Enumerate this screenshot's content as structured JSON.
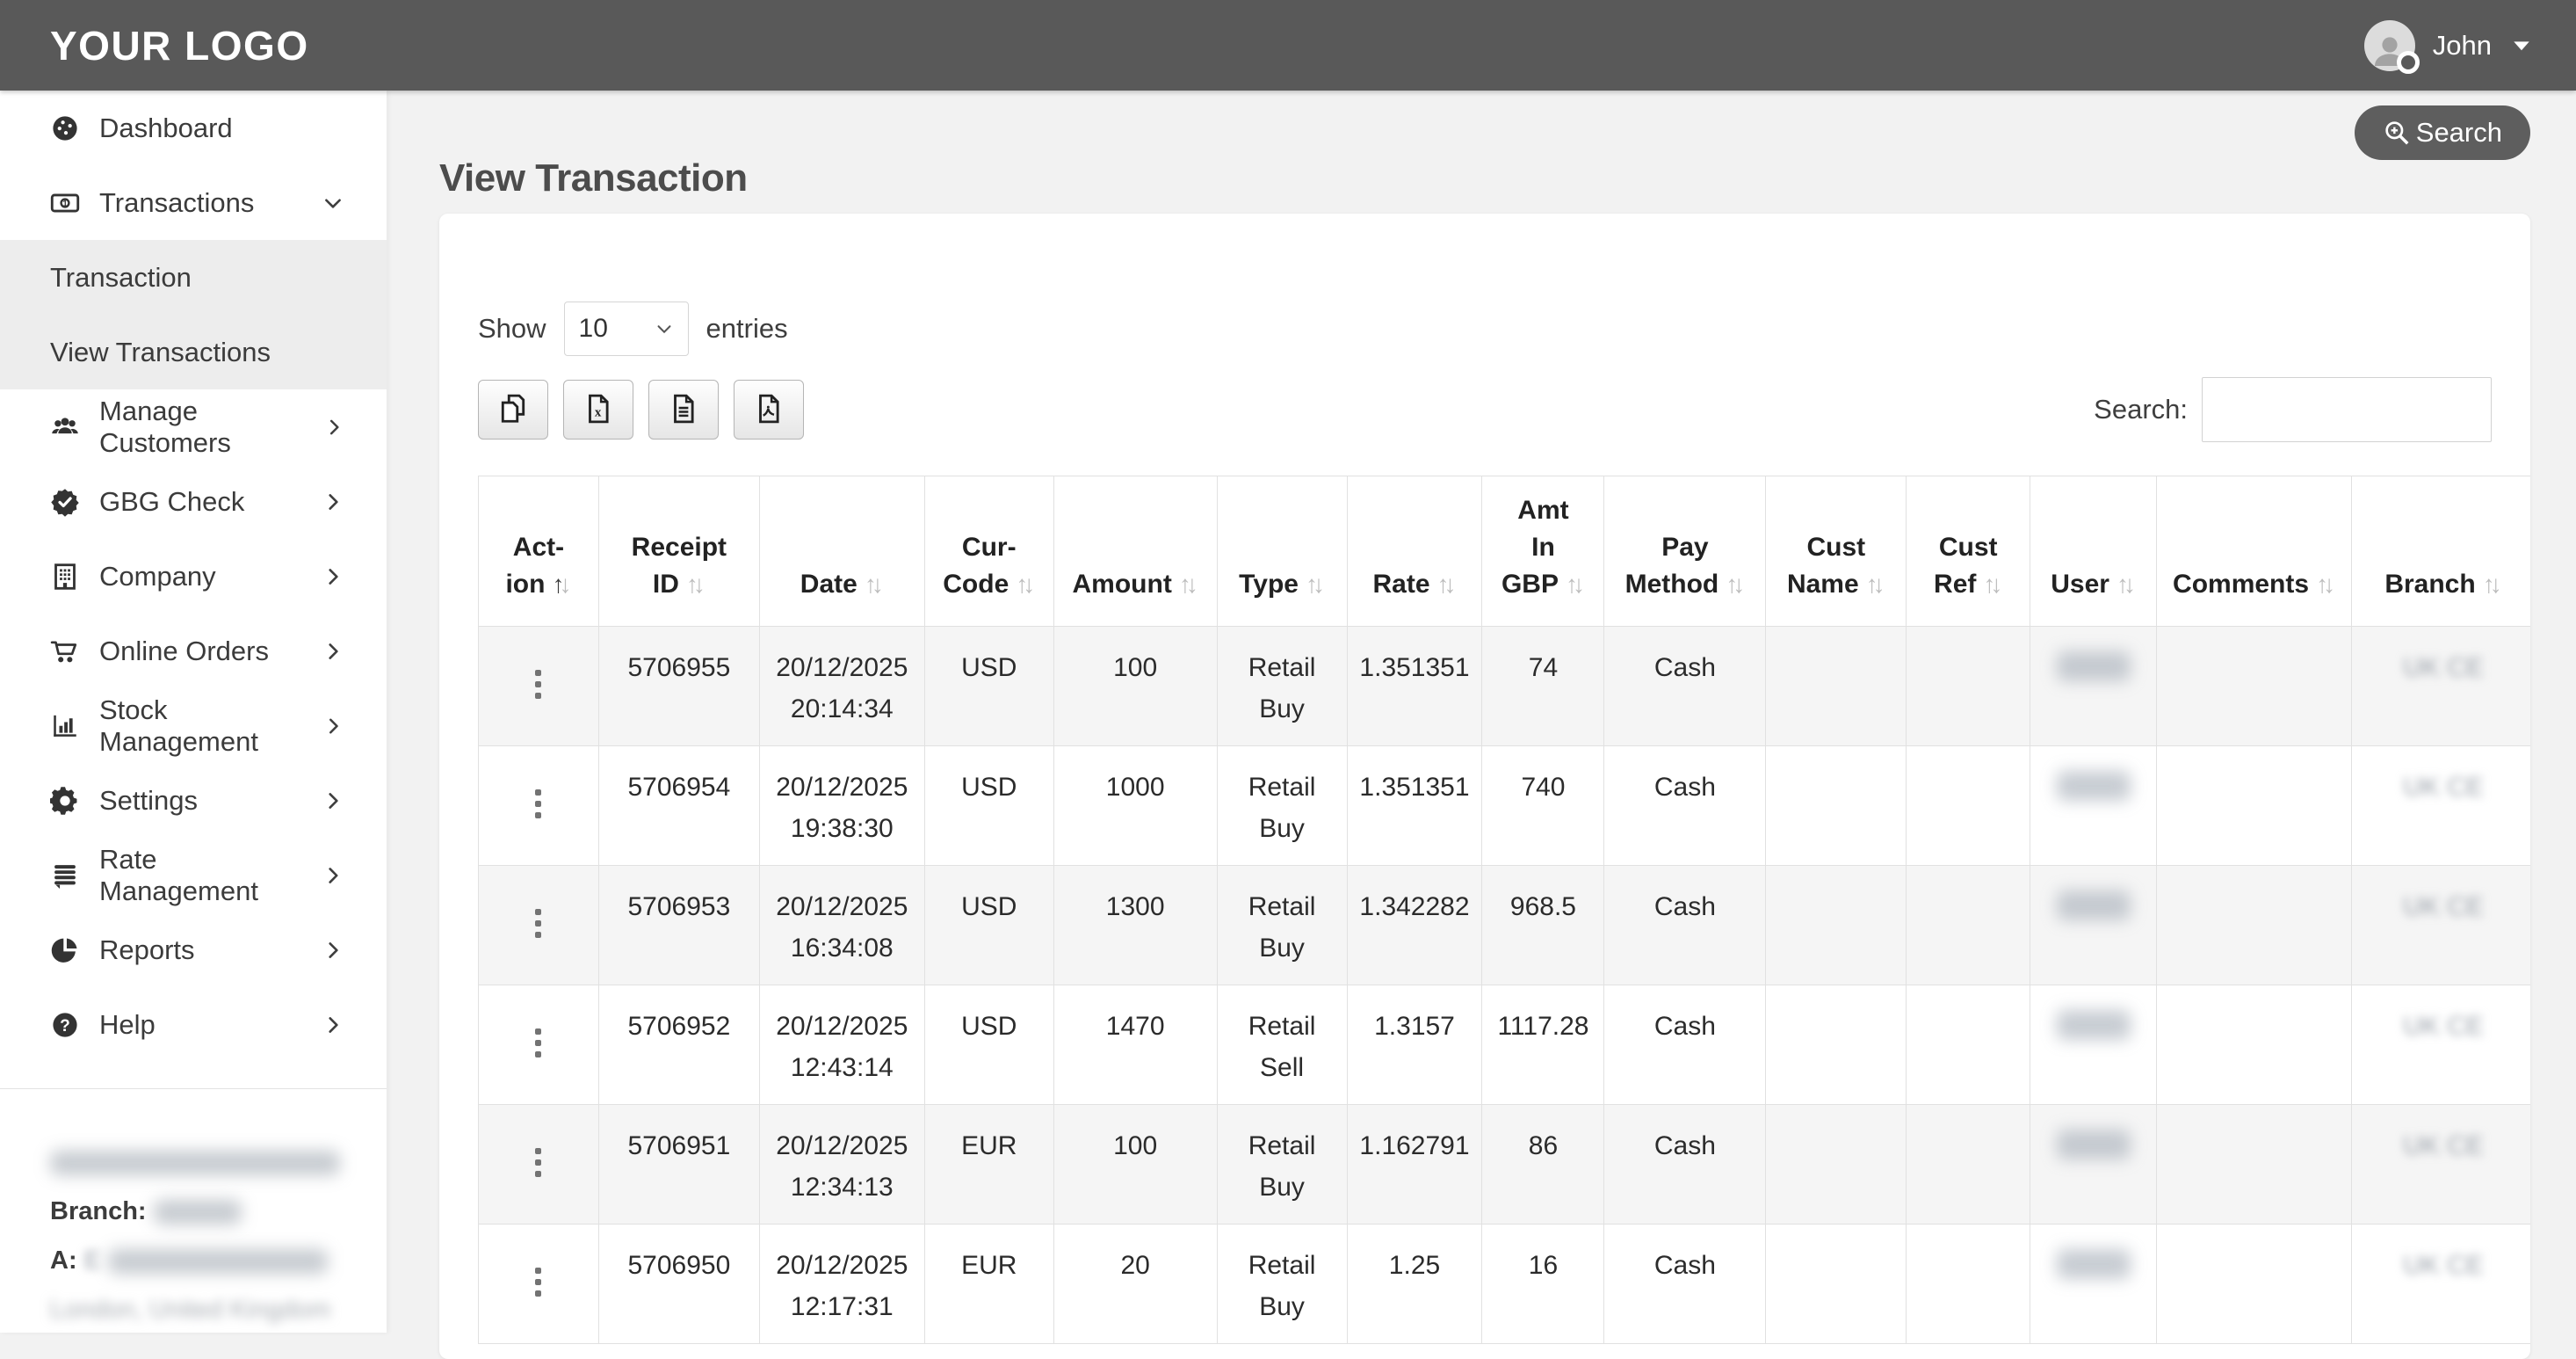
{
  "colors": {
    "topbar": "#595959",
    "button_dark": "#5e5e5e",
    "submenu_bg": "#ededed",
    "row_stripe": "#f5f5f5",
    "main_bg": "#f2f2f2",
    "border": "#e1e1e1"
  },
  "topbar": {
    "logo": "YOUR LOGO",
    "user_name": "John"
  },
  "sidebar": {
    "items": [
      {
        "label": "Dashboard",
        "icon": "gauge"
      },
      {
        "label": "Transactions",
        "icon": "money-bill",
        "chevron": "down"
      },
      {
        "label": "Transaction",
        "sub": true
      },
      {
        "label": "View Transactions",
        "sub": true,
        "active": true
      },
      {
        "label": "Manage Customers",
        "icon": "users",
        "chevron": "right"
      },
      {
        "label": "GBG Check",
        "icon": "badge-check",
        "chevron": "right"
      },
      {
        "label": "Company",
        "icon": "building",
        "chevron": "right"
      },
      {
        "label": "Online Orders",
        "icon": "cart",
        "chevron": "right"
      },
      {
        "label": "Stock Management",
        "icon": "chart-bar",
        "chevron": "right"
      },
      {
        "label": "Settings",
        "icon": "gear",
        "chevron": "right"
      },
      {
        "label": "Rate Management",
        "icon": "stack",
        "chevron": "right"
      },
      {
        "label": "Reports",
        "icon": "pie-chart",
        "chevron": "right"
      },
      {
        "label": "Help",
        "icon": "question-circle",
        "chevron": "right"
      }
    ],
    "footer": {
      "company_blurred": true,
      "branch_label": "Branch:",
      "address_label": "A:",
      "address_prefix": "E",
      "city_blurred": "London, United Kingdom"
    }
  },
  "page": {
    "title": "View Transaction",
    "search_button_label": "Search"
  },
  "toolbar": {
    "show_label": "Show",
    "page_size": "10",
    "entries_label": "entries",
    "export_buttons": [
      {
        "id": "copy",
        "icon": "copy"
      },
      {
        "id": "excel",
        "icon": "file-excel"
      },
      {
        "id": "csv",
        "icon": "file-lines"
      },
      {
        "id": "pdf",
        "icon": "file-pdf"
      }
    ],
    "search_label": "Search:",
    "search_value": ""
  },
  "table": {
    "columns": [
      {
        "id": "action",
        "label_lines": [
          "Act-",
          "ion"
        ],
        "sorted": "asc"
      },
      {
        "id": "receipt_id",
        "label_lines": [
          "Receipt",
          "ID"
        ]
      },
      {
        "id": "date",
        "label_lines": [
          "Date"
        ]
      },
      {
        "id": "cur_code",
        "label_lines": [
          "Cur-",
          "Code"
        ]
      },
      {
        "id": "amount",
        "label_lines": [
          "Amount"
        ]
      },
      {
        "id": "type",
        "label_lines": [
          "Type"
        ]
      },
      {
        "id": "rate",
        "label_lines": [
          "Rate"
        ]
      },
      {
        "id": "amt_in_gbp",
        "label_lines": [
          "Amt",
          "In",
          "GBP"
        ]
      },
      {
        "id": "pay_method",
        "label_lines": [
          "Pay",
          "Method"
        ]
      },
      {
        "id": "cust_name",
        "label_lines": [
          "Cust",
          "Name"
        ]
      },
      {
        "id": "cust_ref",
        "label_lines": [
          "Cust",
          "Ref"
        ]
      },
      {
        "id": "user",
        "label_lines": [
          "User"
        ]
      },
      {
        "id": "comments",
        "label_lines": [
          "Comments"
        ]
      },
      {
        "id": "branch",
        "label_lines": [
          "Branch"
        ]
      }
    ],
    "rows": [
      {
        "receipt_id": "5706955",
        "date": "20/12/2025",
        "time": "20:14:34",
        "cur_code": "USD",
        "amount": "100",
        "type_line1": "Retail",
        "type_line2": "Buy",
        "rate": "1.351351",
        "amt_in_gbp": "74",
        "pay_method": "Cash",
        "cust_name": "",
        "cust_ref": "",
        "user_blurred": true,
        "comments": "",
        "branch_blurred": "UK CE"
      },
      {
        "receipt_id": "5706954",
        "date": "20/12/2025",
        "time": "19:38:30",
        "cur_code": "USD",
        "amount": "1000",
        "type_line1": "Retail",
        "type_line2": "Buy",
        "rate": "1.351351",
        "amt_in_gbp": "740",
        "pay_method": "Cash",
        "cust_name": "",
        "cust_ref": "",
        "user_blurred": true,
        "comments": "",
        "branch_blurred": "UK CE"
      },
      {
        "receipt_id": "5706953",
        "date": "20/12/2025",
        "time": "16:34:08",
        "cur_code": "USD",
        "amount": "1300",
        "type_line1": "Retail",
        "type_line2": "Buy",
        "rate": "1.342282",
        "amt_in_gbp": "968.5",
        "pay_method": "Cash",
        "cust_name": "",
        "cust_ref": "",
        "user_blurred": true,
        "comments": "",
        "branch_blurred": "UK CE"
      },
      {
        "receipt_id": "5706952",
        "date": "20/12/2025",
        "time": "12:43:14",
        "cur_code": "USD",
        "amount": "1470",
        "type_line1": "Retail",
        "type_line2": "Sell",
        "rate": "1.3157",
        "amt_in_gbp": "1117.28",
        "pay_method": "Cash",
        "cust_name": "",
        "cust_ref": "",
        "user_blurred": true,
        "comments": "",
        "branch_blurred": "UK CE"
      },
      {
        "receipt_id": "5706951",
        "date": "20/12/2025",
        "time": "12:34:13",
        "cur_code": "EUR",
        "amount": "100",
        "type_line1": "Retail",
        "type_line2": "Buy",
        "rate": "1.162791",
        "amt_in_gbp": "86",
        "pay_method": "Cash",
        "cust_name": "",
        "cust_ref": "",
        "user_blurred": true,
        "comments": "",
        "branch_blurred": "UK CE"
      },
      {
        "receipt_id": "5706950",
        "date": "20/12/2025",
        "time": "12:17:31",
        "cur_code": "EUR",
        "amount": "20",
        "type_line1": "Retail",
        "type_line2": "Buy",
        "rate": "1.25",
        "amt_in_gbp": "16",
        "pay_method": "Cash",
        "cust_name": "",
        "cust_ref": "",
        "user_blurred": true,
        "comments": "",
        "branch_blurred": "UK CE"
      }
    ]
  }
}
